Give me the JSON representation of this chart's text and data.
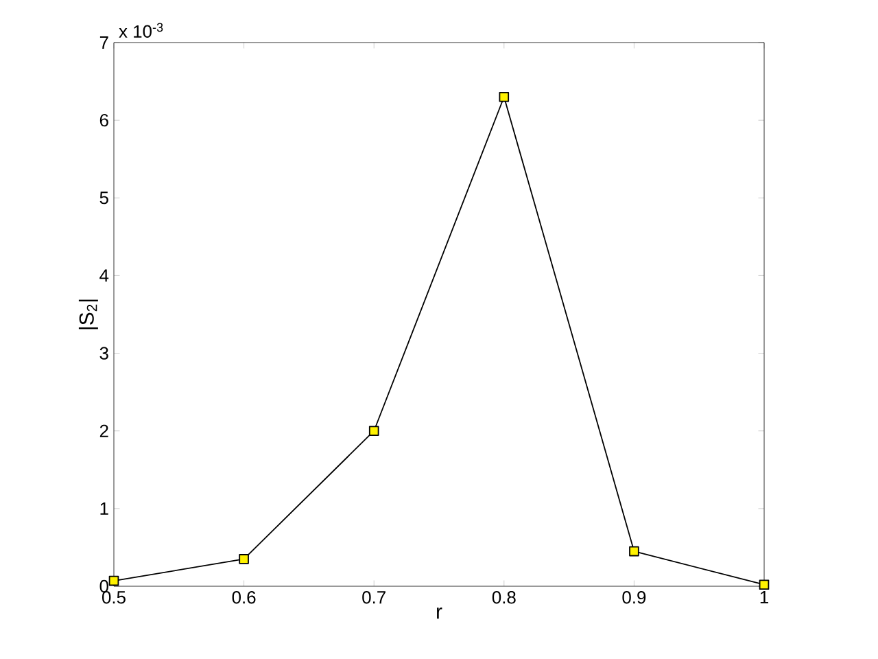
{
  "chart_data": {
    "type": "line",
    "xlabel": "r",
    "ylabel": "|S$_{2}$|",
    "annotations": [
      "x 10$^{-3}$"
    ],
    "x": [
      0.5,
      0.6,
      0.7,
      0.8,
      0.9,
      1.0
    ],
    "series": [
      {
        "color": "#000000",
        "values": [
          0.07,
          0.35,
          2.0,
          6.3,
          0.45,
          0.02
        ]
      }
    ],
    "xlim": [
      0.5,
      1.0
    ],
    "xticks": [
      0.5,
      0.6,
      0.7,
      0.8,
      0.9,
      {
        "value": 1.0,
        "label": "1"
      }
    ],
    "ylim": [
      0,
      7
    ],
    "yticks": [
      0,
      1,
      2,
      3,
      4,
      5,
      6,
      7
    ],
    "grid": false,
    "marker": "square",
    "line_style": "solid"
  }
}
